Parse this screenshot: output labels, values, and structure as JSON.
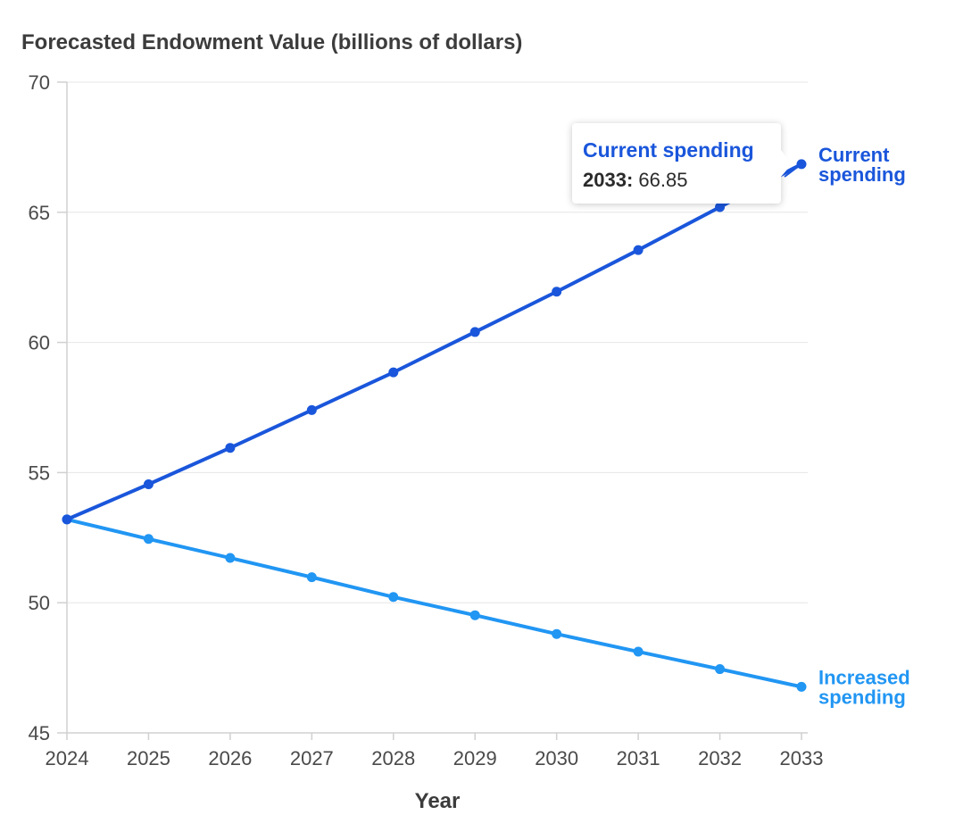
{
  "colors": {
    "current": "#1a56db",
    "increased": "#2196f3"
  },
  "chart_data": {
    "type": "line",
    "title": "Forecasted Endowment Value (billions of dollars)",
    "xlabel": "Year",
    "ylabel": "",
    "x": [
      2024,
      2025,
      2026,
      2027,
      2028,
      2029,
      2030,
      2031,
      2032,
      2033
    ],
    "ylim": [
      45,
      70
    ],
    "yticks": [
      45,
      50,
      55,
      60,
      65,
      70
    ],
    "grid": true,
    "series": [
      {
        "name": "Current spending",
        "label": "Current spending",
        "color": "#1a56db",
        "values": [
          53.2,
          54.55,
          55.95,
          57.4,
          58.85,
          60.4,
          61.95,
          63.55,
          65.2,
          66.85
        ]
      },
      {
        "name": "Increased spending",
        "label": "Increased spending",
        "color": "#2196f3",
        "values": [
          53.2,
          52.45,
          51.72,
          50.98,
          50.22,
          49.52,
          48.8,
          48.12,
          47.45,
          46.77
        ]
      }
    ],
    "tooltip": {
      "series_name": "Current spending",
      "key": "2033:",
      "value": "66.85"
    }
  }
}
